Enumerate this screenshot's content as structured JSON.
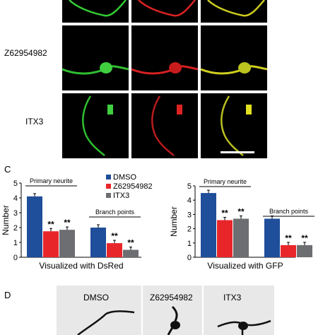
{
  "panel_labels": {
    "c": "C",
    "d": "D"
  },
  "row_labels": [
    "Z62954982",
    "ITX3"
  ],
  "panel_d": {
    "labels": [
      "DMSO",
      "Z62954982",
      "ITX3"
    ]
  },
  "legend": {
    "items": [
      {
        "label": "DMSO",
        "color": "#1f4e9a"
      },
      {
        "label": "Z62954982",
        "color": "#e8262a"
      },
      {
        "label": "ITX3",
        "color": "#6d6e71"
      }
    ]
  },
  "chart_data": [
    {
      "type": "bar",
      "title": "",
      "xlabel": "Visualized with DsRed",
      "ylabel": "Number",
      "ylim": [
        0,
        5
      ],
      "yticks": [
        "0",
        "1",
        "2",
        "3",
        "4",
        "5"
      ],
      "groups": [
        "Primary neurite",
        "Branch points"
      ],
      "series": [
        {
          "name": "DMSO",
          "values": [
            4.1,
            2.0
          ]
        },
        {
          "name": "Z62954982",
          "values": [
            1.75,
            0.95
          ]
        },
        {
          "name": "ITX3",
          "values": [
            1.85,
            0.5
          ]
        }
      ],
      "annotations": [
        "**",
        "**",
        "**",
        "**"
      ]
    },
    {
      "type": "bar",
      "title": "",
      "xlabel": "Visualized with GFP",
      "ylabel": "Number",
      "ylim": [
        0,
        5
      ],
      "yticks": [
        "0",
        "1",
        "2",
        "3",
        "4",
        "5"
      ],
      "groups": [
        "Primary neurite",
        "Branch points"
      ],
      "series": [
        {
          "name": "DMSO",
          "values": [
            4.5,
            2.7
          ]
        },
        {
          "name": "Z62954982",
          "values": [
            2.6,
            0.85
          ]
        },
        {
          "name": "ITX3",
          "values": [
            2.7,
            0.85
          ]
        }
      ],
      "annotations": [
        "**",
        "**",
        "**",
        "**"
      ]
    }
  ]
}
